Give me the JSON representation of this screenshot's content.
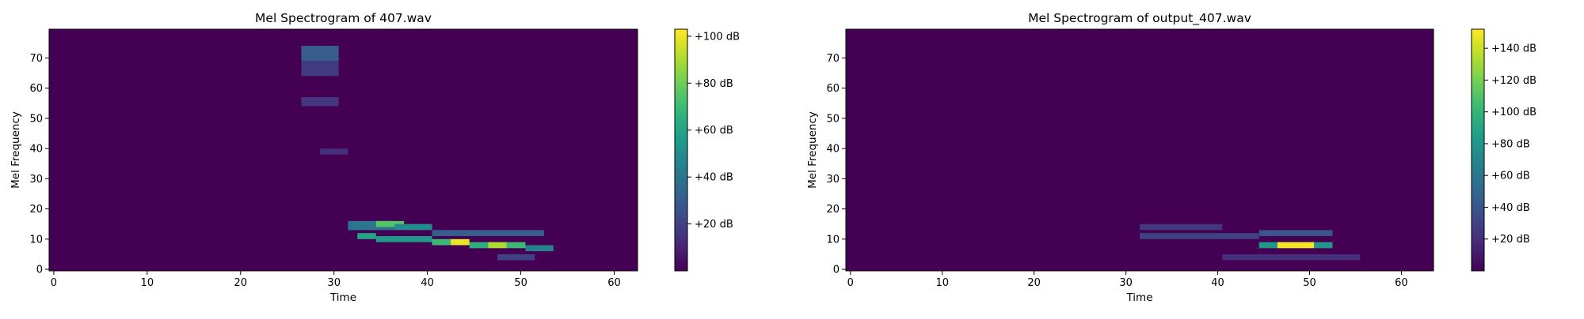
{
  "chart_data": [
    {
      "type": "heatmap",
      "title": "Mel Spectrogram of 407.wav",
      "xlabel": "Time",
      "ylabel": "Mel Frequency",
      "xlim": [
        -0.5,
        62.5
      ],
      "ylim": [
        -0.5,
        79.5
      ],
      "xticks": [
        0,
        10,
        20,
        30,
        40,
        50,
        60
      ],
      "yticks": [
        0,
        10,
        20,
        30,
        40,
        50,
        60,
        70
      ],
      "colormap": "viridis",
      "colorbar": {
        "min": 0,
        "max": 103,
        "ticks": [
          20,
          40,
          60,
          80,
          100
        ],
        "tick_labels": [
          "+20 dB",
          "+40 dB",
          "+60 dB",
          "+80 dB",
          "+100 dB"
        ]
      },
      "features": [
        {
          "t": [
            26.5,
            30.5
          ],
          "f": [
            69,
            74
          ],
          "value": 30
        },
        {
          "t": [
            26.5,
            30.5
          ],
          "f": [
            64,
            69
          ],
          "value": 18
        },
        {
          "t": [
            26.5,
            30.5
          ],
          "f": [
            54,
            57
          ],
          "value": 16
        },
        {
          "t": [
            28.5,
            31.5
          ],
          "f": [
            38,
            40
          ],
          "value": 14
        },
        {
          "t": [
            31.5,
            36.5
          ],
          "f": [
            13,
            16
          ],
          "value": 40
        },
        {
          "t": [
            34.5,
            37.5
          ],
          "f": [
            14,
            16
          ],
          "value": 75
        },
        {
          "t": [
            36.5,
            40.5
          ],
          "f": [
            13,
            15
          ],
          "value": 50
        },
        {
          "t": [
            32.5,
            34.5
          ],
          "f": [
            10,
            12
          ],
          "value": 60
        },
        {
          "t": [
            34.5,
            40.5
          ],
          "f": [
            9,
            11
          ],
          "value": 55
        },
        {
          "t": [
            40.5,
            42.5
          ],
          "f": [
            8,
            10
          ],
          "value": 70
        },
        {
          "t": [
            42.5,
            44.5
          ],
          "f": [
            8,
            10
          ],
          "value": 100
        },
        {
          "t": [
            44.5,
            46.5
          ],
          "f": [
            7,
            9
          ],
          "value": 65
        },
        {
          "t": [
            46.5,
            48.5
          ],
          "f": [
            7,
            9
          ],
          "value": 90
        },
        {
          "t": [
            48.5,
            50.5
          ],
          "f": [
            7,
            9
          ],
          "value": 70
        },
        {
          "t": [
            50.5,
            53.5
          ],
          "f": [
            6,
            8
          ],
          "value": 45
        },
        {
          "t": [
            40.5,
            52.5
          ],
          "f": [
            11,
            13
          ],
          "value": 30
        },
        {
          "t": [
            47.5,
            51.5
          ],
          "f": [
            3,
            5
          ],
          "value": 20
        }
      ]
    },
    {
      "type": "heatmap",
      "title": "Mel Spectrogram of output_407.wav",
      "xlabel": "Time",
      "ylabel": "Mel Frequency",
      "xlim": [
        -0.5,
        63.5
      ],
      "ylim": [
        -0.5,
        79.5
      ],
      "xticks": [
        0,
        10,
        20,
        30,
        40,
        50,
        60
      ],
      "yticks": [
        0,
        10,
        20,
        30,
        40,
        50,
        60,
        70
      ],
      "colormap": "viridis",
      "colorbar": {
        "min": 0,
        "max": 152,
        "ticks": [
          20,
          40,
          60,
          80,
          100,
          120,
          140
        ],
        "tick_labels": [
          "+20 dB",
          "+40 dB",
          "+60 dB",
          "+80 dB",
          "+100 dB",
          "+120 dB",
          "+140 dB"
        ]
      },
      "features": [
        {
          "t": [
            31.5,
            40.5
          ],
          "f": [
            13,
            15
          ],
          "value": 25
        },
        {
          "t": [
            31.5,
            44.5
          ],
          "f": [
            10,
            12
          ],
          "value": 30
        },
        {
          "t": [
            44.5,
            46.5
          ],
          "f": [
            7,
            9
          ],
          "value": 80
        },
        {
          "t": [
            46.5,
            50.5
          ],
          "f": [
            7,
            9
          ],
          "value": 150
        },
        {
          "t": [
            50.5,
            52.5
          ],
          "f": [
            7,
            9
          ],
          "value": 80
        },
        {
          "t": [
            44.5,
            52.5
          ],
          "f": [
            11,
            13
          ],
          "value": 40
        },
        {
          "t": [
            40.5,
            55.5
          ],
          "f": [
            3,
            5
          ],
          "value": 20
        }
      ]
    }
  ]
}
